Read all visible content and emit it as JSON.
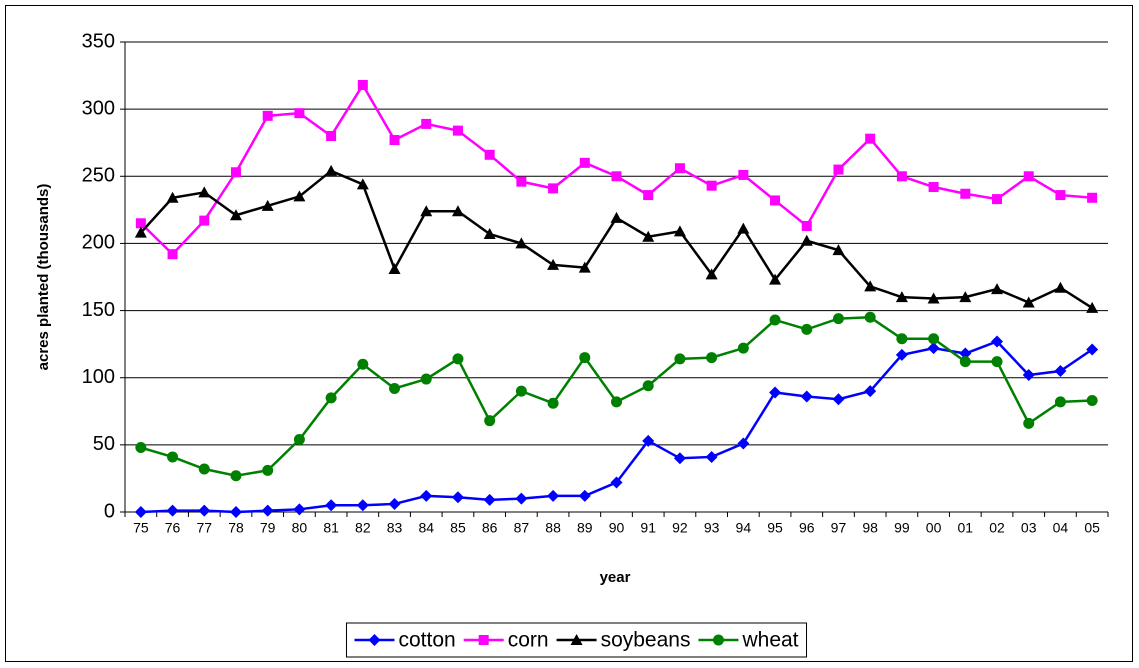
{
  "chart_data": {
    "type": "line",
    "x_label": "year",
    "y_label": "acres planted (thousands)",
    "categories": [
      "75",
      "76",
      "77",
      "78",
      "79",
      "80",
      "81",
      "82",
      "83",
      "84",
      "85",
      "86",
      "87",
      "88",
      "89",
      "90",
      "91",
      "92",
      "93",
      "94",
      "95",
      "96",
      "97",
      "98",
      "99",
      "00",
      "01",
      "02",
      "03",
      "04",
      "05"
    ],
    "series": [
      {
        "name": "cotton",
        "color": "#0000ff",
        "marker": "diamond",
        "values": [
          0,
          1,
          1,
          0,
          1,
          2,
          5,
          5,
          6,
          12,
          11,
          9,
          10,
          12,
          12,
          22,
          53,
          40,
          41,
          51,
          89,
          86,
          84,
          90,
          117,
          122,
          118,
          127,
          102,
          105,
          121
        ]
      },
      {
        "name": "corn",
        "color": "#ff00ff",
        "marker": "square",
        "values": [
          215,
          192,
          217,
          253,
          295,
          297,
          280,
          318,
          277,
          289,
          284,
          266,
          246,
          241,
          260,
          250,
          236,
          256,
          243,
          251,
          232,
          213,
          255,
          278,
          250,
          242,
          237,
          233,
          250,
          236,
          234
        ]
      },
      {
        "name": "soybeans",
        "color": "#000000",
        "marker": "triangle",
        "values": [
          208,
          234,
          238,
          221,
          228,
          235,
          254,
          244,
          181,
          224,
          224,
          207,
          200,
          184,
          182,
          219,
          205,
          209,
          177,
          211,
          173,
          202,
          195,
          168,
          160,
          159,
          160,
          166,
          156,
          167,
          152
        ]
      },
      {
        "name": "wheat",
        "color": "#008000",
        "marker": "circle",
        "values": [
          48,
          41,
          32,
          27,
          31,
          54,
          85,
          110,
          92,
          99,
          114,
          68,
          90,
          81,
          115,
          82,
          94,
          114,
          115,
          122,
          143,
          136,
          144,
          145,
          129,
          129,
          112,
          112,
          66,
          82,
          83
        ]
      }
    ],
    "ylim": [
      0,
      350
    ],
    "yticks": [
      0,
      50,
      100,
      150,
      200,
      250,
      300,
      350
    ],
    "grid": true,
    "legend": "bottom"
  }
}
